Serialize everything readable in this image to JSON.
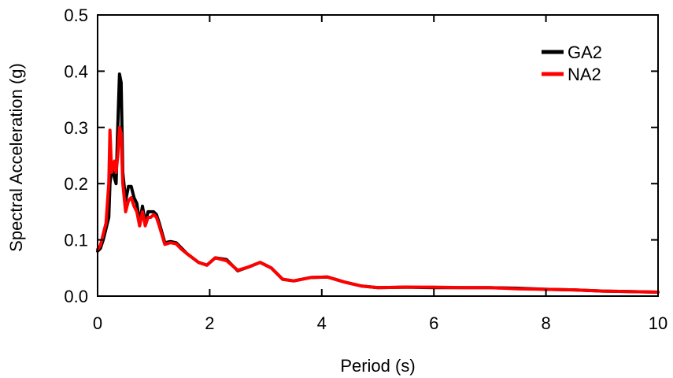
{
  "chart_data": {
    "type": "line",
    "title": "",
    "xlabel": "Period (s)",
    "ylabel": "Spectral Acceleration (g)",
    "xlim": [
      0,
      10
    ],
    "ylim": [
      0,
      0.5
    ],
    "xticks": [
      0,
      2,
      4,
      6,
      8,
      10
    ],
    "xtick_labels": [
      "0",
      "2",
      "4",
      "6",
      "8",
      "10"
    ],
    "yticks": [
      0,
      0.1,
      0.2,
      0.3,
      0.4,
      0.5
    ],
    "ytick_labels": [
      "0.0",
      "0.1",
      "0.2",
      "0.3",
      "0.4",
      "0.5"
    ],
    "grid": false,
    "legend_position": "top-right",
    "series": [
      {
        "name": "GA2",
        "color": "#000000",
        "x": [
          0,
          0.05,
          0.1,
          0.15,
          0.2,
          0.22,
          0.25,
          0.3,
          0.33,
          0.36,
          0.39,
          0.42,
          0.45,
          0.5,
          0.55,
          0.6,
          0.65,
          0.7,
          0.75,
          0.8,
          0.85,
          0.9,
          0.95,
          1.0,
          1.05,
          1.1,
          1.2,
          1.3,
          1.4,
          1.5,
          1.6,
          1.8,
          1.95,
          2.1,
          2.3,
          2.5,
          2.7,
          2.9,
          3.1,
          3.3,
          3.5,
          3.8,
          4.1,
          4.4,
          4.7,
          5.0,
          5.5,
          6.0,
          6.5,
          7.0,
          7.5,
          8.0,
          8.5,
          9.0,
          9.5,
          10.0
        ],
        "y": [
          0.08,
          0.085,
          0.1,
          0.12,
          0.14,
          0.2,
          0.23,
          0.21,
          0.2,
          0.3,
          0.395,
          0.38,
          0.22,
          0.17,
          0.195,
          0.195,
          0.175,
          0.165,
          0.13,
          0.16,
          0.13,
          0.15,
          0.15,
          0.15,
          0.145,
          0.13,
          0.095,
          0.097,
          0.095,
          0.085,
          0.075,
          0.06,
          0.055,
          0.068,
          0.065,
          0.045,
          0.052,
          0.06,
          0.05,
          0.03,
          0.027,
          0.033,
          0.034,
          0.025,
          0.018,
          0.015,
          0.016,
          0.015,
          0.015,
          0.015,
          0.014,
          0.012,
          0.011,
          0.009,
          0.008,
          0.007
        ]
      },
      {
        "name": "NA2",
        "color": "#ff0000",
        "x": [
          0,
          0.05,
          0.1,
          0.15,
          0.2,
          0.22,
          0.25,
          0.3,
          0.33,
          0.36,
          0.39,
          0.42,
          0.45,
          0.5,
          0.55,
          0.6,
          0.65,
          0.7,
          0.75,
          0.8,
          0.85,
          0.9,
          0.95,
          1.0,
          1.05,
          1.1,
          1.2,
          1.3,
          1.4,
          1.5,
          1.6,
          1.8,
          1.95,
          2.1,
          2.3,
          2.5,
          2.7,
          2.9,
          3.1,
          3.3,
          3.5,
          3.8,
          4.1,
          4.4,
          4.7,
          5.0,
          5.5,
          6.0,
          6.5,
          7.0,
          7.5,
          8.0,
          8.5,
          9.0,
          9.5,
          10.0
        ],
        "y": [
          0.083,
          0.09,
          0.11,
          0.13,
          0.2,
          0.295,
          0.22,
          0.24,
          0.22,
          0.25,
          0.3,
          0.29,
          0.2,
          0.15,
          0.17,
          0.175,
          0.16,
          0.15,
          0.125,
          0.15,
          0.125,
          0.14,
          0.14,
          0.145,
          0.14,
          0.125,
          0.092,
          0.095,
          0.093,
          0.083,
          0.075,
          0.06,
          0.055,
          0.068,
          0.063,
          0.046,
          0.052,
          0.06,
          0.05,
          0.03,
          0.027,
          0.033,
          0.034,
          0.025,
          0.018,
          0.015,
          0.016,
          0.016,
          0.015,
          0.015,
          0.013,
          0.012,
          0.011,
          0.009,
          0.008,
          0.007
        ]
      }
    ]
  }
}
